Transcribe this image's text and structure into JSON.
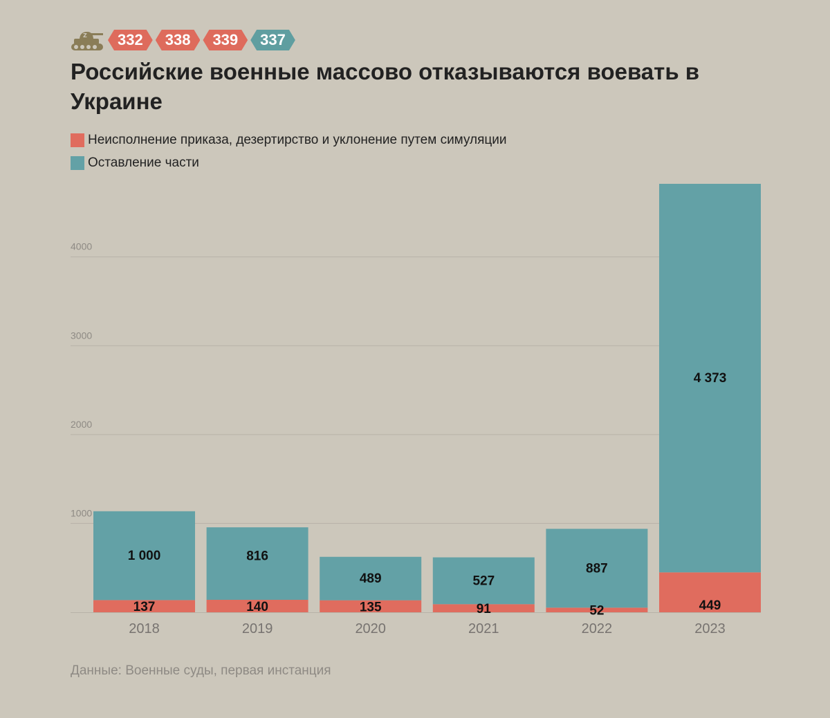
{
  "badges": [
    {
      "label": "332",
      "color": "#de6b5c"
    },
    {
      "label": "338",
      "color": "#de6b5c"
    },
    {
      "label": "339",
      "color": "#de6b5c"
    },
    {
      "label": "337",
      "color": "#5f9ea0"
    }
  ],
  "icon": "tank-icon",
  "title": "Российские военные массово отказываются воевать в Украине",
  "legend": [
    {
      "label": "Неисполнение приказа, дезертирство и уклонение путем симуляции",
      "color": "#e06c5e"
    },
    {
      "label": "Оставление части",
      "color": "#63a1a6"
    }
  ],
  "source": "Данные: Военные суды, первая инстанция",
  "chart_data": {
    "type": "bar",
    "stacked": true,
    "categories": [
      "2018",
      "2019",
      "2020",
      "2021",
      "2022",
      "2023"
    ],
    "series": [
      {
        "name": "Неисполнение приказа, дезертирство и уклонение путем симуляции",
        "values": [
          137,
          140,
          135,
          91,
          52,
          449
        ],
        "labels": [
          "137",
          "140",
          "135",
          "91",
          "52",
          "449"
        ],
        "color": "#e06c5e"
      },
      {
        "name": "Оставление части",
        "values": [
          1000,
          816,
          489,
          527,
          887,
          4373
        ],
        "labels": [
          "1 000",
          "816",
          "489",
          "527",
          "887",
          "4 373"
        ],
        "color": "#63a1a6"
      }
    ],
    "y_ticks": [
      1000,
      2000,
      3000,
      4000
    ],
    "y_tick_labels": [
      "1000",
      "2000",
      "3000",
      "4000"
    ],
    "ylim": [
      0,
      4822
    ],
    "grid": true
  }
}
